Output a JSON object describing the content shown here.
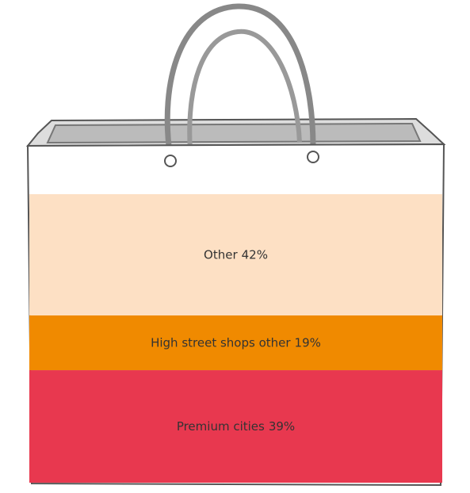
{
  "chart_data": {
    "type": "stacked-bar",
    "series": [
      {
        "name": "Premium cities",
        "color": "#e8384f",
        "values": [
          39
        ],
        "value_labels": [
          "39%"
        ]
      },
      {
        "name": "High street shops other",
        "color": "#f08a00",
        "values": [
          19
        ],
        "value_labels": [
          "19%"
        ]
      },
      {
        "name": "Other",
        "color": "#fde0c4",
        "values": [
          42
        ],
        "value_labels": [
          "42%"
        ]
      }
    ]
  }
}
